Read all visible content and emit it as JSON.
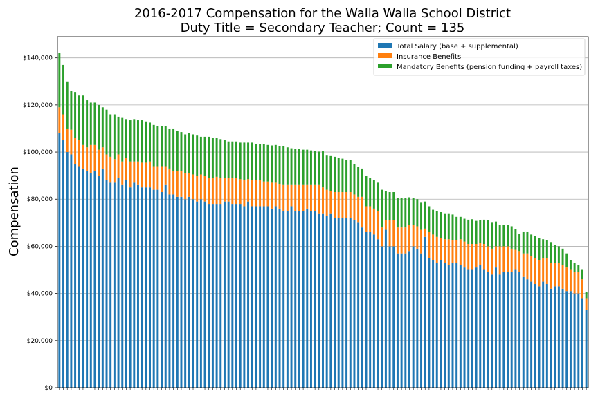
{
  "chart_data": {
    "type": "bar",
    "stacked": true,
    "title": "2016-2017 Compensation for the Walla Walla School District",
    "subtitle": "Duty Title = Secondary Teacher; Count = 135",
    "xlabel": "",
    "ylabel": "Compensation",
    "ylim": [
      0,
      149000
    ],
    "yticks": [
      0,
      20000,
      40000,
      60000,
      80000,
      100000,
      120000,
      140000
    ],
    "ytick_labels": [
      "$0",
      "$20,000",
      "$40,000",
      "$60,000",
      "$80,000",
      "$100,000",
      "$120,000",
      "$140,000"
    ],
    "grid": "horizontal",
    "legend_position": "top-right",
    "series": [
      {
        "name": "Total Salary (base + supplemental)",
        "color": "#1f77b4",
        "values": [
          108000,
          105000,
          100000,
          99000,
          95000,
          94000,
          93000,
          92000,
          91000,
          92000,
          90000,
          93000,
          88000,
          87000,
          87000,
          89000,
          86000,
          88000,
          85000,
          87000,
          86000,
          85000,
          85000,
          85000,
          84000,
          84000,
          83000,
          86000,
          82000,
          82000,
          81000,
          81000,
          80000,
          81000,
          80000,
          79000,
          80000,
          79000,
          78000,
          78000,
          78000,
          78000,
          79000,
          79000,
          78000,
          78000,
          78000,
          77000,
          79000,
          77000,
          77000,
          77000,
          77000,
          77000,
          76000,
          77000,
          76000,
          75000,
          75000,
          77000,
          75000,
          75000,
          75000,
          76000,
          75000,
          75000,
          74000,
          74000,
          73000,
          74000,
          72000,
          72000,
          72000,
          72000,
          72000,
          71000,
          70000,
          68000,
          66000,
          66000,
          65000,
          63000,
          60000,
          67000,
          60000,
          60000,
          57000,
          57000,
          57000,
          58000,
          60000,
          59000,
          57000,
          64000,
          55000,
          54000,
          53000,
          54000,
          53000,
          52000,
          53000,
          53000,
          52000,
          51000,
          50000,
          50000,
          51000,
          52000,
          50000,
          49000,
          48000,
          51000,
          48000,
          49000,
          49000,
          49000,
          50000,
          49000,
          47000,
          46000,
          45000,
          44000,
          43000,
          45000,
          44000,
          42000,
          43000,
          43000,
          42000,
          41000,
          41000,
          40000,
          40000,
          38000,
          33000
        ]
      },
      {
        "name": "Insurance Benefits",
        "color": "#ff7f0e",
        "values": [
          11000,
          11000,
          10000,
          10500,
          11000,
          11000,
          10000,
          10000,
          12000,
          11000,
          11000,
          9000,
          11000,
          11000,
          10000,
          10000,
          10000,
          9500,
          11000,
          9000,
          10000,
          10500,
          10500,
          11000,
          10000,
          10000,
          11000,
          8000,
          11000,
          10000,
          11000,
          11000,
          11000,
          10000,
          10500,
          11000,
          10500,
          11000,
          11000,
          11000,
          11500,
          11000,
          10000,
          10000,
          11000,
          11000,
          10500,
          11000,
          9500,
          11000,
          11000,
          11000,
          10500,
          10500,
          11000,
          10000,
          10500,
          11000,
          11000,
          9000,
          11000,
          11000,
          11000,
          10000,
          11000,
          11000,
          12000,
          11000,
          11000,
          9500,
          11000,
          11000,
          11000,
          11000,
          11000,
          11000,
          11000,
          13000,
          11000,
          11000,
          11000,
          12000,
          8000,
          4000,
          11000,
          11000,
          11000,
          11000,
          11000,
          11000,
          9000,
          9500,
          10000,
          3500,
          11000,
          11000,
          11000,
          9500,
          10000,
          11000,
          9500,
          9500,
          11000,
          11000,
          11000,
          11000,
          10000,
          9500,
          11000,
          11000,
          11000,
          9000,
          12000,
          11000,
          11000,
          10000,
          8500,
          9000,
          10000,
          11000,
          11000,
          11000,
          11000,
          10000,
          11000,
          11000,
          10000,
          10000,
          10000,
          10000,
          9000,
          9000,
          9000,
          8000,
          5000
        ]
      },
      {
        "name": "Mandatory Benefits (pension funding + payroll taxes)",
        "color": "#2ca02c",
        "values": [
          23000,
          21000,
          20000,
          16500,
          19500,
          19000,
          21000,
          20000,
          18000,
          18000,
          19000,
          17000,
          19000,
          18000,
          19000,
          16000,
          18500,
          16500,
          17500,
          18000,
          17500,
          18000,
          17500,
          16500,
          17500,
          17000,
          17000,
          17000,
          17000,
          18000,
          17000,
          16500,
          16500,
          17000,
          17000,
          17000,
          16000,
          16500,
          17500,
          17000,
          16500,
          16500,
          16000,
          15500,
          15500,
          15500,
          15500,
          16000,
          15500,
          16000,
          15500,
          15500,
          16000,
          15500,
          15800,
          16000,
          16000,
          16500,
          16000,
          15600,
          15400,
          15200,
          15000,
          15000,
          14700,
          14600,
          14200,
          15300,
          14500,
          14800,
          15000,
          14500,
          14200,
          13700,
          13500,
          13000,
          12700,
          12000,
          13000,
          12000,
          12200,
          12000,
          16000,
          12500,
          12000,
          12000,
          12500,
          12500,
          12500,
          11800,
          11500,
          11500,
          11500,
          11500,
          11000,
          10500,
          11000,
          11000,
          11000,
          11000,
          11000,
          10000,
          9500,
          9700,
          10300,
          10500,
          9800,
          9500,
          10300,
          11000,
          11000,
          10500,
          9000,
          9000,
          9000,
          9500,
          8700,
          7200,
          9000,
          9000,
          9000,
          9500,
          9500,
          8000,
          7700,
          8800,
          7500,
          7000,
          7000,
          6000,
          4000,
          4000,
          3000,
          4000,
          2500
        ]
      }
    ]
  }
}
